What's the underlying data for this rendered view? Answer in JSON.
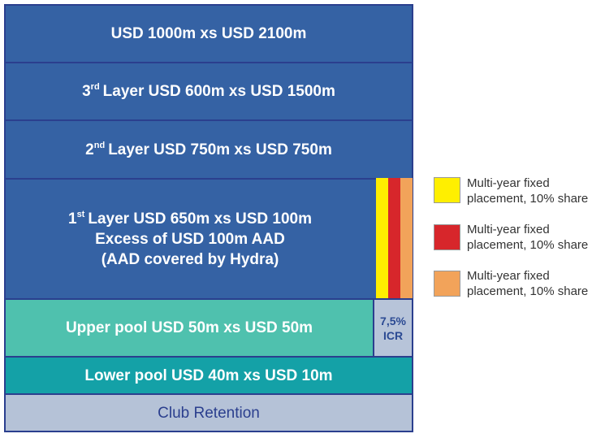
{
  "tower": {
    "layers": [
      {
        "lines": [
          "USD 1000m xs USD 2100m"
        ]
      },
      {
        "ordinal": "3",
        "suffix": "rd",
        "lines": [
          "Layer USD 600m xs USD 1500m"
        ]
      },
      {
        "ordinal": "2",
        "suffix": "nd",
        "lines": [
          "Layer USD 750m xs USD 750m"
        ]
      },
      {
        "ordinal": "1",
        "suffix": "st",
        "lines": [
          "Layer USD 650m xs USD 100m",
          "Excess of USD 100m AAD",
          "(AAD covered by Hydra)"
        ]
      },
      {
        "lines": [
          "Upper pool USD 50m xs USD 50m"
        ]
      },
      {
        "lines": [
          "Lower pool USD 40m xs USD 10m"
        ]
      },
      {
        "lines": [
          "Club Retention"
        ]
      }
    ],
    "icr": [
      "7,5%",
      "ICR"
    ]
  },
  "legend": [
    {
      "lines": [
        "Multi-year fixed",
        "placement, 10% share"
      ]
    },
    {
      "lines": [
        "Multi-year fixed",
        "placement, 10% share"
      ]
    },
    {
      "lines": [
        "Multi-year fixed",
        "placement, 10% share"
      ]
    }
  ]
}
